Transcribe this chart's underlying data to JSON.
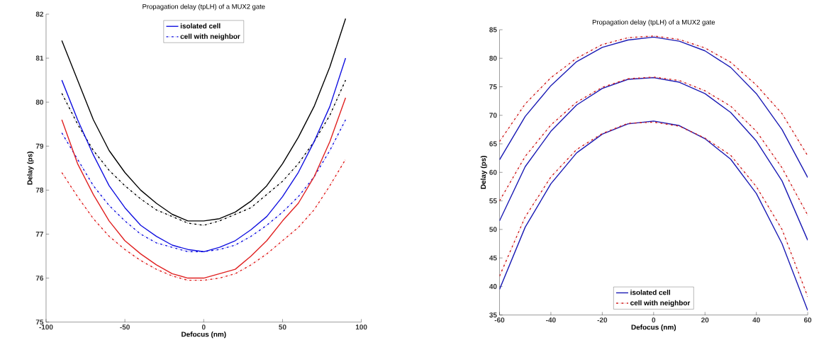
{
  "chart_data": [
    {
      "type": "line",
      "title": "Propagation delay (tpLH) of a MUX2 gate",
      "xlabel": "Defocus (nm)",
      "ylabel": "Delay (ps)",
      "x": [
        -90,
        -80,
        -70,
        -60,
        -50,
        -40,
        -30,
        -20,
        -10,
        0,
        10,
        20,
        30,
        40,
        50,
        60,
        70,
        80,
        90
      ],
      "xlim": [
        -100,
        100
      ],
      "xticks": [
        -100,
        -50,
        0,
        50,
        100
      ],
      "ylim": [
        75,
        82
      ],
      "yticks": [
        75,
        76,
        77,
        78,
        79,
        80,
        81,
        82
      ],
      "grid": false,
      "legend": "top",
      "marker": "none",
      "series": [
        {
          "color": "#000000",
          "line_style": "solid",
          "values": [
            81.4,
            80.5,
            79.6,
            78.9,
            78.4,
            78.0,
            77.7,
            77.45,
            77.3,
            77.3,
            77.35,
            77.5,
            77.75,
            78.1,
            78.6,
            79.2,
            79.9,
            80.8,
            81.9
          ]
        },
        {
          "color": "#000000",
          "line_style": "dashdot",
          "values": [
            80.2,
            79.5,
            78.9,
            78.45,
            78.1,
            77.8,
            77.55,
            77.4,
            77.25,
            77.2,
            77.3,
            77.45,
            77.6,
            77.9,
            78.2,
            78.6,
            79.1,
            79.7,
            80.5
          ]
        },
        {
          "name": "isolated cell",
          "color": "#1010e0",
          "line_style": "solid",
          "values": [
            80.5,
            79.6,
            78.8,
            78.1,
            77.6,
            77.2,
            76.95,
            76.75,
            76.65,
            76.6,
            76.7,
            76.85,
            77.1,
            77.4,
            77.85,
            78.4,
            79.1,
            79.9,
            81.0
          ]
        },
        {
          "name": "cell with neighbor",
          "color": "#1010e0",
          "line_style": "dashdot",
          "values": [
            79.3,
            78.7,
            78.1,
            77.65,
            77.3,
            77.0,
            76.8,
            76.7,
            76.6,
            76.6,
            76.65,
            76.75,
            76.95,
            77.2,
            77.5,
            77.85,
            78.3,
            78.9,
            79.6
          ]
        },
        {
          "color": "#e02020",
          "line_style": "solid",
          "values": [
            79.6,
            78.6,
            77.9,
            77.3,
            76.85,
            76.55,
            76.3,
            76.1,
            76.0,
            76.0,
            76.1,
            76.2,
            76.5,
            76.85,
            77.3,
            77.7,
            78.3,
            79.1,
            80.1
          ]
        },
        {
          "color": "#e02020",
          "line_style": "dashdot",
          "values": [
            78.4,
            77.85,
            77.35,
            76.95,
            76.65,
            76.4,
            76.2,
            76.05,
            75.95,
            75.95,
            76.0,
            76.1,
            76.3,
            76.55,
            76.85,
            77.15,
            77.55,
            78.1,
            78.7
          ]
        }
      ]
    },
    {
      "type": "line",
      "title": "Propagation delay (tpLH) of a MUX2 gate",
      "xlabel": "Defocus (nm)",
      "ylabel": "Delay (ps)",
      "x": [
        -60,
        -50,
        -40,
        -30,
        -20,
        -10,
        0,
        10,
        20,
        30,
        40,
        50,
        60
      ],
      "xlim": [
        -60,
        60
      ],
      "xticks": [
        -60,
        -40,
        -20,
        0,
        20,
        40,
        60
      ],
      "ylim": [
        35,
        85
      ],
      "yticks": [
        35,
        40,
        45,
        50,
        55,
        60,
        65,
        70,
        75,
        80,
        85
      ],
      "grid": false,
      "legend": "bottom",
      "marker": "none",
      "series": [
        {
          "name": "isolated cell",
          "color": "#1a1ab4",
          "line_style": "solid",
          "values": [
            62.2,
            69.8,
            75.2,
            79.4,
            81.9,
            83.2,
            83.7,
            83.0,
            81.3,
            78.4,
            73.8,
            67.5,
            59.1
          ]
        },
        {
          "name": "cell with neighbor",
          "color": "#d02020",
          "line_style": "dashdot",
          "values": [
            65.4,
            72.0,
            76.6,
            80.0,
            82.4,
            83.6,
            83.9,
            83.3,
            81.8,
            79.3,
            75.3,
            70.3,
            62.9
          ]
        },
        {
          "color": "#1a1ab4",
          "line_style": "solid",
          "values": [
            51.5,
            61.0,
            67.2,
            71.8,
            74.7,
            76.3,
            76.6,
            75.8,
            73.8,
            70.5,
            65.5,
            58.5,
            48.1
          ]
        },
        {
          "color": "#d02020",
          "line_style": "dashdot",
          "values": [
            55.0,
            62.8,
            68.3,
            72.3,
            74.9,
            76.4,
            76.7,
            76.1,
            74.3,
            71.6,
            67.2,
            60.8,
            52.5
          ]
        },
        {
          "color": "#1a1ab4",
          "line_style": "solid",
          "values": [
            39.5,
            50.4,
            58.0,
            63.4,
            66.7,
            68.5,
            69.0,
            68.2,
            65.9,
            62.3,
            56.3,
            47.5,
            35.8
          ]
        },
        {
          "color": "#d02020",
          "line_style": "dashdot",
          "values": [
            41.8,
            52.2,
            59.2,
            64.0,
            66.8,
            68.6,
            68.8,
            68.1,
            66.0,
            63.0,
            57.5,
            50.0,
            38.2
          ]
        }
      ]
    }
  ]
}
